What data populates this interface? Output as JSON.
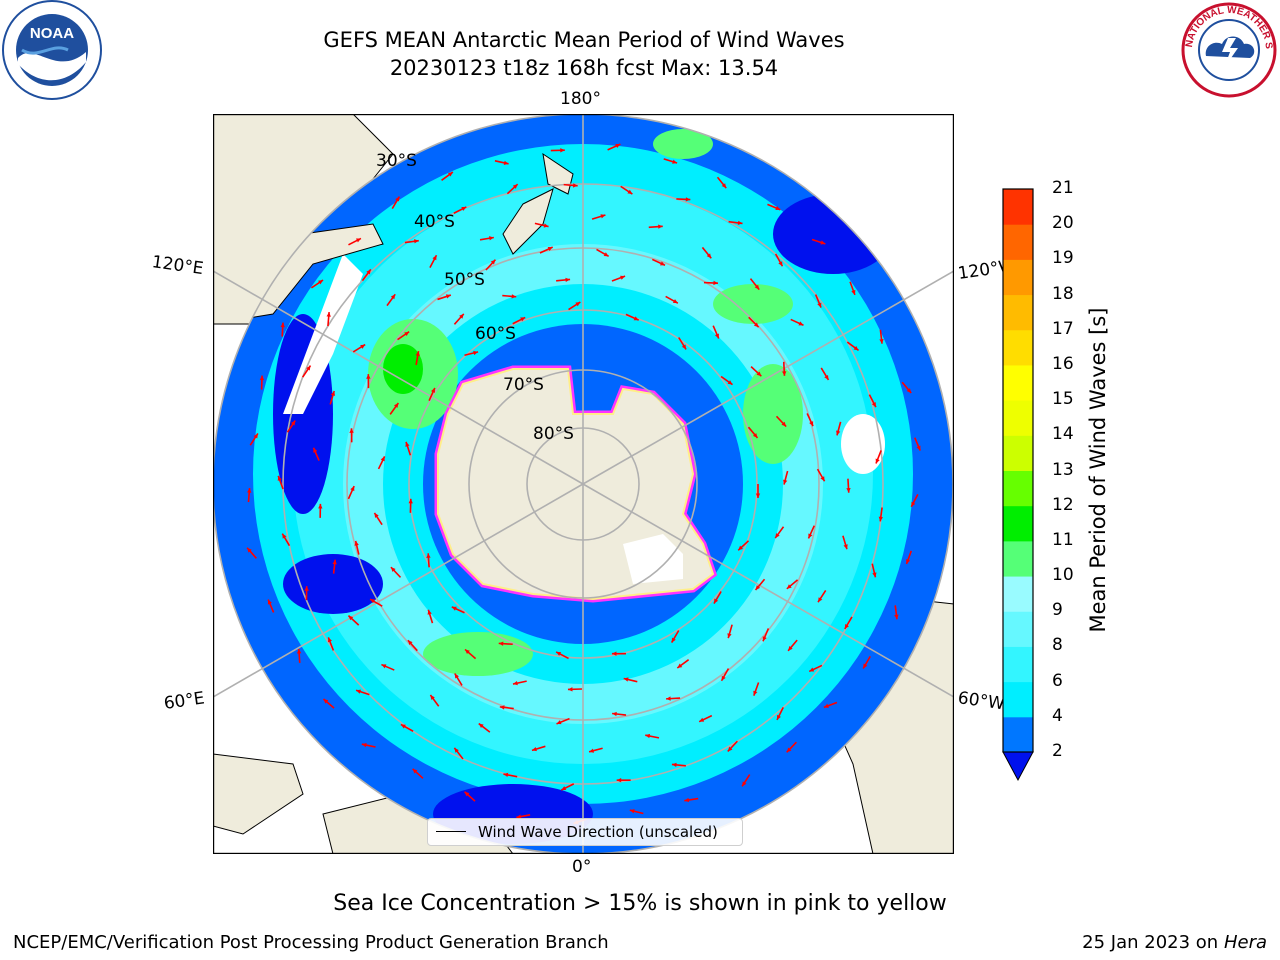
{
  "header": {
    "title_line1": "GEFS MEAN Antarctic Mean Period of Wind Waves",
    "title_line2": "20230123 t18z 168h fcst   Max: 13.54"
  },
  "logos": {
    "left": {
      "name": "noaa-logo",
      "text": "NOAA"
    },
    "right": {
      "name": "national-weather-service-logo",
      "text": "NATIONAL WEATHER SERVICE"
    }
  },
  "map": {
    "projection": "south-polar-stereographic",
    "longitude_labels": {
      "top": "180°",
      "bottom": "0°",
      "left_upper": "120°E",
      "left_lower": "60°E",
      "right_upper": "120°W",
      "right_lower": "60°W"
    },
    "latitude_labels": [
      "30°S",
      "40°S",
      "50°S",
      "60°S",
      "70°S",
      "80°S"
    ],
    "colors": {
      "land": "#efecdc",
      "sea_ice_edge": [
        "#ff33ff",
        "#ffccee",
        "#ffff66"
      ],
      "arrow": "#ff0000",
      "grid": "#b0b0b0"
    },
    "legend": {
      "label": "Wind Wave Direction (unscaled)"
    }
  },
  "colorbar": {
    "title": "Mean Period of Wind Waves [s]",
    "ticks": [
      "2",
      "4",
      "6",
      "8",
      "9",
      "10",
      "11",
      "12",
      "13",
      "14",
      "15",
      "16",
      "17",
      "18",
      "19",
      "20",
      "21"
    ],
    "colors": [
      "#0077ff",
      "#00eeff",
      "#33f5ff",
      "#66f8ff",
      "#99fbff",
      "#55ff77",
      "#00ee00",
      "#66ff00",
      "#ccff00",
      "#eeff00",
      "#ffff00",
      "#ffdd00",
      "#ffbb00",
      "#ff9900",
      "#ff6600",
      "#ff3300",
      "#ff0000"
    ],
    "under_color": "#0011ee"
  },
  "notes": {
    "sea_ice": "Sea Ice Concentration > 15% is shown in pink to yellow"
  },
  "footer": {
    "left": "NCEP/EMC/Verification Post Processing Product Generation Branch",
    "right_prefix": "25 Jan 2023 on ",
    "right_machine": "Hera"
  }
}
